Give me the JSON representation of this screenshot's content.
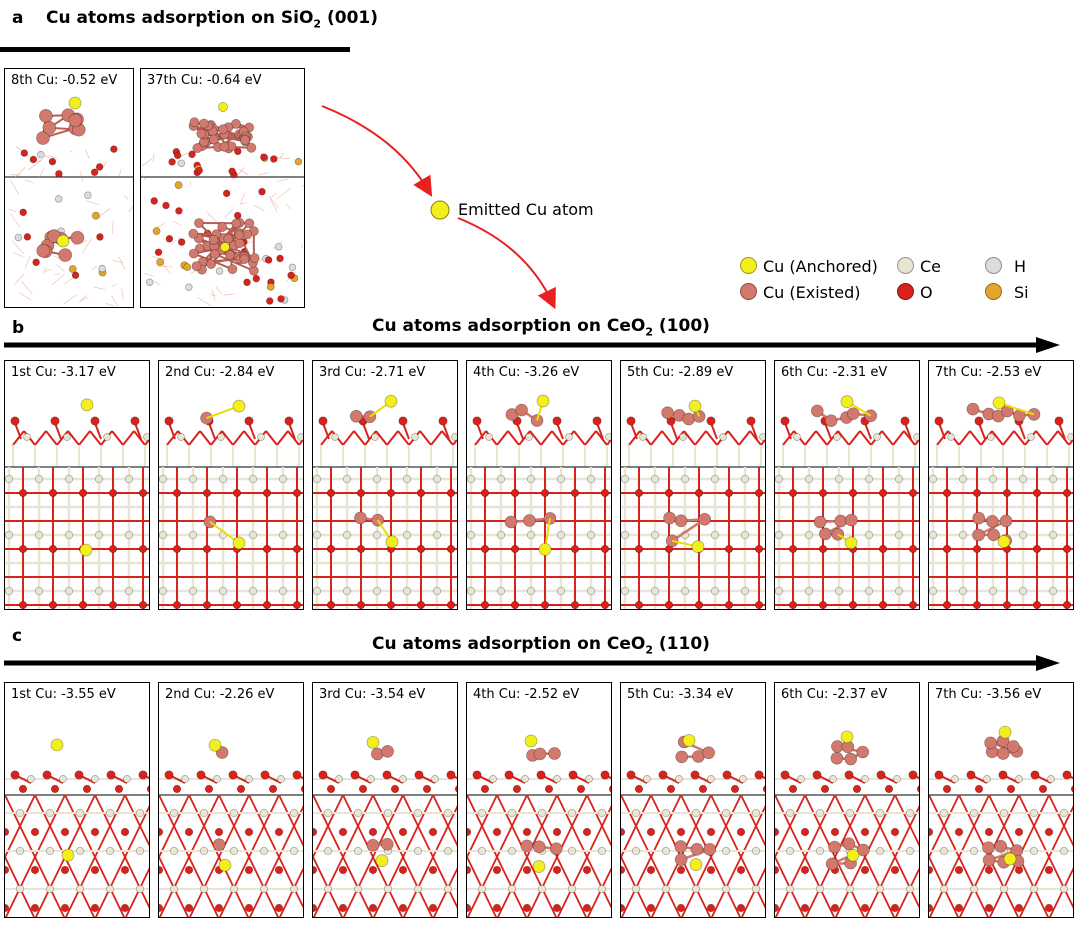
{
  "colors": {
    "cu_anchored": "#f2ef1d",
    "cu_existed": "#d2786c",
    "ce": "#e8e6d2",
    "o": "#d9221b",
    "h": "#dcdcdc",
    "si": "#e3a52c",
    "arrow_red": "#e82020"
  },
  "panel_a": {
    "letter": "a",
    "title_main": "Cu atoms adsorption on SiO",
    "title_sub": "2",
    "title_tail": " (001)",
    "frames": [
      {
        "caption": "8th Cu: -0.52 eV"
      },
      {
        "caption": "37th Cu: -0.64 eV"
      }
    ]
  },
  "emitted": {
    "label": "Emitted Cu atom"
  },
  "legend": [
    {
      "label": "Cu (Anchored)",
      "color_key": "cu_anchored"
    },
    {
      "label": "Ce",
      "color_key": "ce"
    },
    {
      "label": "H",
      "color_key": "h"
    },
    {
      "label": "Cu (Existed)",
      "color_key": "cu_existed"
    },
    {
      "label": "O",
      "color_key": "o"
    },
    {
      "label": "Si",
      "color_key": "si"
    }
  ],
  "panel_b": {
    "letter": "b",
    "title_main": "Cu atoms adsorption on CeO",
    "title_sub": "2",
    "title_tail": " (100)",
    "frames": [
      {
        "caption": "1st Cu: -3.17 eV",
        "energy": -3.17
      },
      {
        "caption": "2nd Cu: -2.84 eV",
        "energy": -2.84
      },
      {
        "caption": "3rd Cu: -2.71 eV",
        "energy": -2.71
      },
      {
        "caption": "4th Cu: -3.26 eV",
        "energy": -3.26
      },
      {
        "caption": "5th Cu: -2.89 eV",
        "energy": -2.89
      },
      {
        "caption": "6th Cu: -2.31 eV",
        "energy": -2.31
      },
      {
        "caption": "7th Cu: -2.53 eV",
        "energy": -2.53
      }
    ]
  },
  "panel_c": {
    "letter": "c",
    "title_main": "Cu atoms adsorption on CeO",
    "title_sub": "2",
    "title_tail": " (110)",
    "frames": [
      {
        "caption": "1st Cu: -3.55 eV",
        "energy": -3.55
      },
      {
        "caption": "2nd Cu: -2.26 eV",
        "energy": -2.26
      },
      {
        "caption": "3rd Cu: -3.54 eV",
        "energy": -3.54
      },
      {
        "caption": "4th Cu: -2.52 eV",
        "energy": -2.52
      },
      {
        "caption": "5th Cu: -3.34 eV",
        "energy": -3.34
      },
      {
        "caption": "6th Cu: -2.37 eV",
        "energy": -2.37
      },
      {
        "caption": "7th Cu: -3.56 eV",
        "energy": -3.56
      }
    ]
  }
}
